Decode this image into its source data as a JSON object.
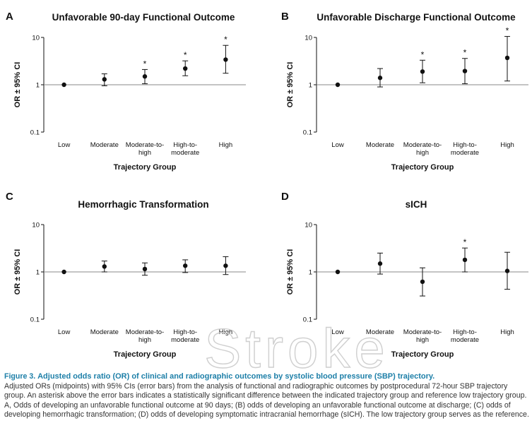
{
  "chart_data": [
    {
      "type": "scatter",
      "panel": "A",
      "title": "Unfavorable 90-day Functional Outcome",
      "xlabel": "Trajectory Group",
      "ylabel": "OR ± 95% CI",
      "scale": "log",
      "ylim": [
        0.1,
        10
      ],
      "yticks": [
        "0.1",
        "1",
        "10"
      ],
      "categories": [
        "Low",
        "Moderate",
        "Moderate-to-high",
        "High-to-moderate",
        "High"
      ],
      "category_lines": [
        [
          "Low"
        ],
        [
          "Moderate"
        ],
        [
          "Moderate-to-",
          "high"
        ],
        [
          "High-to-",
          "moderate"
        ],
        [
          "High"
        ]
      ],
      "or": [
        1.0,
        1.3,
        1.5,
        2.2,
        3.4
      ],
      "ci_low": [
        null,
        0.95,
        1.05,
        1.55,
        1.75
      ],
      "ci_high": [
        null,
        1.7,
        2.1,
        3.2,
        6.8
      ],
      "significant": [
        false,
        false,
        true,
        true,
        true
      ],
      "reference_line": 1
    },
    {
      "type": "scatter",
      "panel": "B",
      "title": "Unfavorable Discharge Functional Outcome",
      "xlabel": "Trajectory Group",
      "ylabel": "OR ± 95% CI",
      "scale": "log",
      "ylim": [
        0.1,
        10
      ],
      "yticks": [
        "0.1",
        "1",
        "10"
      ],
      "categories": [
        "Low",
        "Moderate",
        "Moderate-to-high",
        "High-to-moderate",
        "High"
      ],
      "category_lines": [
        [
          "Low"
        ],
        [
          "Moderate"
        ],
        [
          "Moderate-to-",
          "high"
        ],
        [
          "High-to-",
          "moderate"
        ],
        [
          "High"
        ]
      ],
      "or": [
        1.0,
        1.4,
        1.9,
        1.95,
        3.7
      ],
      "ci_low": [
        null,
        0.9,
        1.1,
        1.05,
        1.2
      ],
      "ci_high": [
        null,
        2.2,
        3.3,
        3.6,
        10.5
      ],
      "significant": [
        false,
        false,
        true,
        true,
        true
      ],
      "reference_line": 1
    },
    {
      "type": "scatter",
      "panel": "C",
      "title": "Hemorrhagic Transformation",
      "xlabel": "Trajectory Group",
      "ylabel": "OR ± 95% CI",
      "scale": "log",
      "ylim": [
        0.1,
        10
      ],
      "yticks": [
        "0.1",
        "1",
        "10"
      ],
      "categories": [
        "Low",
        "Moderate",
        "Moderate-to-high",
        "High-to-moderate",
        "High"
      ],
      "category_lines": [
        [
          "Low"
        ],
        [
          "Moderate"
        ],
        [
          "Moderate-to-",
          "high"
        ],
        [
          "High-to-",
          "moderate"
        ],
        [
          "High"
        ]
      ],
      "or": [
        1.0,
        1.3,
        1.15,
        1.35,
        1.35
      ],
      "ci_low": [
        null,
        1.0,
        0.85,
        0.97,
        0.88
      ],
      "ci_high": [
        null,
        1.7,
        1.55,
        1.8,
        2.1
      ],
      "significant": [
        false,
        false,
        false,
        false,
        false
      ],
      "reference_line": 1
    },
    {
      "type": "scatter",
      "panel": "D",
      "title": "sICH",
      "xlabel": "Trajectory Group",
      "ylabel": "OR ± 95% CI",
      "scale": "log",
      "ylim": [
        0.1,
        10
      ],
      "yticks": [
        "0.1",
        "1",
        "10"
      ],
      "categories": [
        "Low",
        "Moderate",
        "Moderate-to-high",
        "High-to-moderate",
        "High"
      ],
      "category_lines": [
        [
          "Low"
        ],
        [
          "Moderate"
        ],
        [
          "Moderate-to-",
          "high"
        ],
        [
          "High-to-",
          "moderate"
        ],
        [
          "High"
        ]
      ],
      "or": [
        1.0,
        1.5,
        0.62,
        1.8,
        1.05
      ],
      "ci_low": [
        null,
        0.9,
        0.31,
        1.0,
        0.43
      ],
      "ci_high": [
        null,
        2.5,
        1.22,
        3.2,
        2.6
      ],
      "significant": [
        false,
        false,
        false,
        true,
        false
      ],
      "reference_line": 1
    }
  ],
  "significance_marker": "*",
  "watermark": "Stroke",
  "caption": {
    "label": "Figure 3.",
    "title": "Adjusted odds ratio (OR) of clinical and radiographic outcomes by systolic blood pressure (SBP) trajectory.",
    "body": "Adjusted ORs (midpoints) with 95% CIs (error bars) from the analysis of functional and radiographic outcomes by postprocedural 72-hour SBP trajectory group. An asterisk above the error bars indicates a statistically significant difference between the indicated trajectory group and reference low trajectory group. A, Odds of developing an unfavorable functional outcome at 90 days; (B) odds of developing an unfavorable functional outcome at discharge; (C) odds of developing hemorrhagic transformation; (D) odds of developing symptomatic intracranial hemorrhage (sICH). The low trajectory group serves as the reference."
  }
}
